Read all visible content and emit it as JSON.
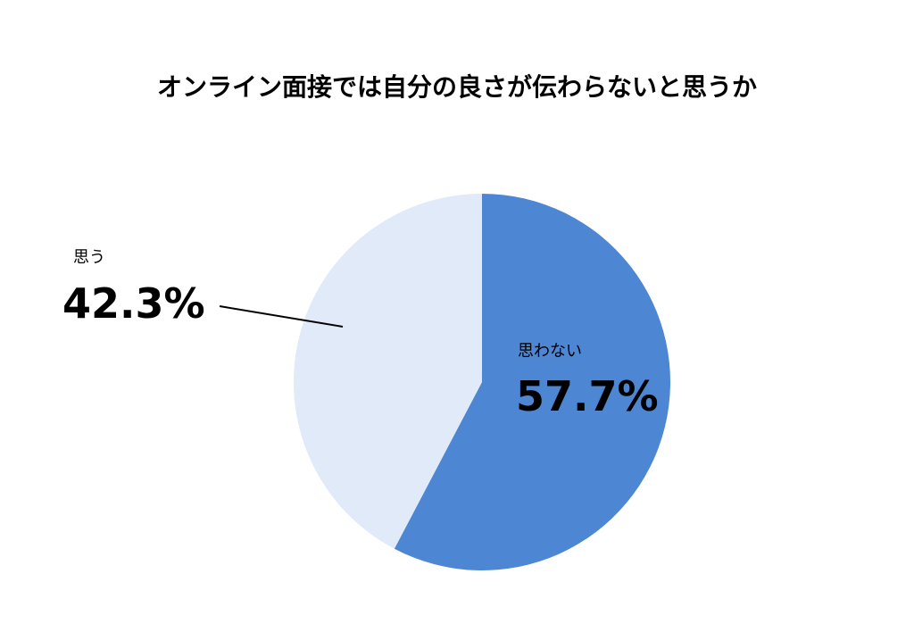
{
  "chart_data": {
    "type": "pie",
    "title": "オンライン面接では自分の良さが伝わらないと思うか",
    "slices": [
      {
        "label": "思わない",
        "value": 57.7,
        "display": "57.7%",
        "color": "#4D86D3"
      },
      {
        "label": "思う",
        "value": 42.3,
        "display": "42.3%",
        "color": "#E1EAF8"
      }
    ],
    "start_angle_deg": 0,
    "direction": "clockwise",
    "legend": "none"
  }
}
